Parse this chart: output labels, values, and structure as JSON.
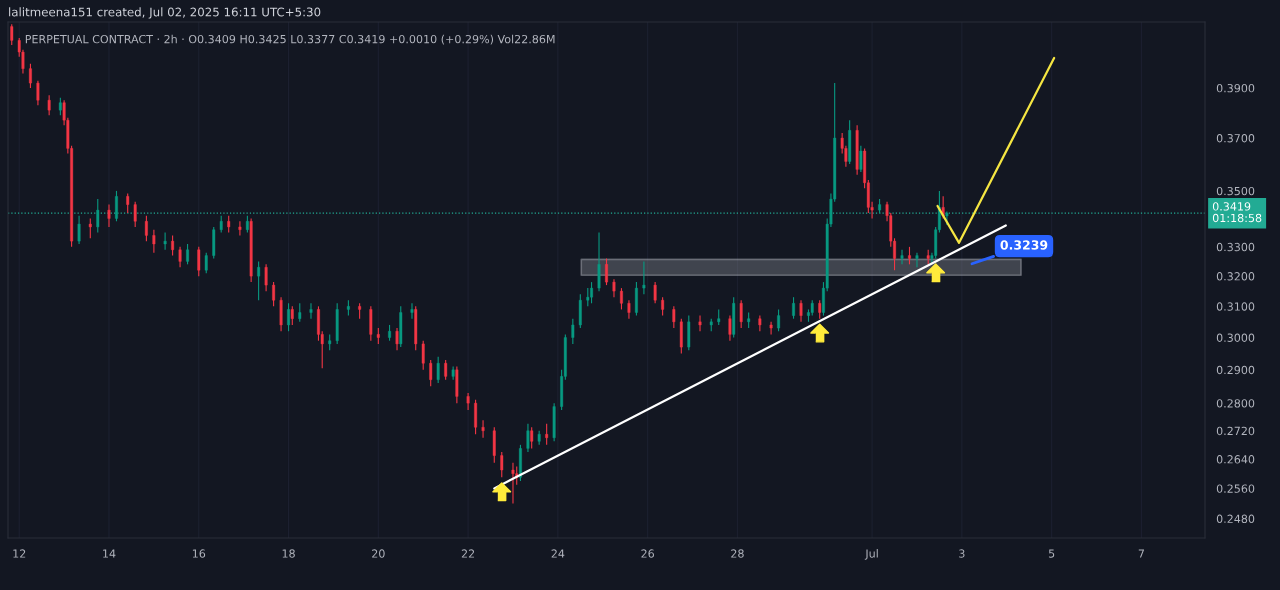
{
  "chart_data": {
    "type": "candlestick",
    "title": "lalitmeena151 created, Jul 02, 2025 16:11 UTC+5:30",
    "subtitle": "PERPETUAL CONTRACT · 2h · O0.3409 H0.3425 L0.3377 C0.3419 +0.0010 (+0.29%) Vol22.86M",
    "log": "y",
    "grid": "x",
    "xlim": [
      "2025-06-11T18:00",
      "2025-07-08T10:00"
    ],
    "xticks": [
      {
        "value": "2025-06-12",
        "label": "12"
      },
      {
        "value": "2025-06-14",
        "label": "14"
      },
      {
        "value": "2025-06-16",
        "label": "16"
      },
      {
        "value": "2025-06-18",
        "label": "18"
      },
      {
        "value": "2025-06-20",
        "label": "20"
      },
      {
        "value": "2025-06-22",
        "label": "22"
      },
      {
        "value": "2025-06-24",
        "label": "24"
      },
      {
        "value": "2025-06-26",
        "label": "26"
      },
      {
        "value": "2025-06-28",
        "label": "28"
      },
      {
        "value": "2025-07-01",
        "label": "Jul"
      },
      {
        "value": "2025-07-03",
        "label": "3"
      },
      {
        "value": "2025-07-05",
        "label": "5"
      },
      {
        "value": "2025-07-07",
        "label": "7"
      }
    ],
    "ylim": [
      0.243,
      0.418
    ],
    "yticks": [
      {
        "value": 0.248,
        "label": "0.2480"
      },
      {
        "value": 0.256,
        "label": "0.2560"
      },
      {
        "value": 0.264,
        "label": "0.2640"
      },
      {
        "value": 0.272,
        "label": "0.2720"
      },
      {
        "value": 0.28,
        "label": "0.2800"
      },
      {
        "value": 0.29,
        "label": "0.2900"
      },
      {
        "value": 0.3,
        "label": "0.3000"
      },
      {
        "value": 0.31,
        "label": "0.3100"
      },
      {
        "value": 0.32,
        "label": "0.3200"
      },
      {
        "value": 0.33,
        "label": "0.3300"
      },
      {
        "value": 0.35,
        "label": "0.3500"
      },
      {
        "value": 0.37,
        "label": "0.3700"
      },
      {
        "value": 0.39,
        "label": "0.3900"
      }
    ],
    "x": [
      "2025-06-11T20:00",
      "2025-06-12T00:00",
      "2025-06-12T02:00",
      "2025-06-12T06:00",
      "2025-06-12T10:00",
      "2025-06-12T16:00",
      "2025-06-12T22:00",
      "2025-06-13T00:00",
      "2025-06-13T02:00",
      "2025-06-13T04:00",
      "2025-06-13T08:00",
      "2025-06-13T14:00",
      "2025-06-13T18:00",
      "2025-06-14T00:00",
      "2025-06-14T04:00",
      "2025-06-14T10:00",
      "2025-06-14T14:00",
      "2025-06-14T20:00",
      "2025-06-15T00:00",
      "2025-06-15T06:00",
      "2025-06-15T10:00",
      "2025-06-15T14:00",
      "2025-06-15T18:00",
      "2025-06-16T00:00",
      "2025-06-16T04:00",
      "2025-06-16T08:00",
      "2025-06-16T12:00",
      "2025-06-16T16:00",
      "2025-06-16T22:00",
      "2025-06-17T02:00",
      "2025-06-17T04:00",
      "2025-06-17T08:00",
      "2025-06-17T12:00",
      "2025-06-17T16:00",
      "2025-06-17T20:00",
      "2025-06-18T00:00",
      "2025-06-18T02:00",
      "2025-06-18T06:00",
      "2025-06-18T12:00",
      "2025-06-18T16:00",
      "2025-06-18T18:00",
      "2025-06-18T22:00",
      "2025-06-19T02:00",
      "2025-06-19T08:00",
      "2025-06-19T14:00",
      "2025-06-19T20:00",
      "2025-06-20T00:00",
      "2025-06-20T06:00",
      "2025-06-20T10:00",
      "2025-06-20T12:00",
      "2025-06-20T18:00",
      "2025-06-20T20:00",
      "2025-06-21T00:00",
      "2025-06-21T04:00",
      "2025-06-21T08:00",
      "2025-06-21T12:00",
      "2025-06-21T16:00",
      "2025-06-21T18:00",
      "2025-06-22T00:00",
      "2025-06-22T04:00",
      "2025-06-22T08:00",
      "2025-06-22T14:00",
      "2025-06-22T18:00",
      "2025-06-23T00:00",
      "2025-06-23T02:00",
      "2025-06-23T04:00",
      "2025-06-23T08:00",
      "2025-06-23T10:00",
      "2025-06-23T14:00",
      "2025-06-23T18:00",
      "2025-06-23T22:00",
      "2025-06-24T02:00",
      "2025-06-24T04:00",
      "2025-06-24T08:00",
      "2025-06-24T12:00",
      "2025-06-24T16:00",
      "2025-06-24T18:00",
      "2025-06-24T22:00",
      "2025-06-25T02:00",
      "2025-06-25T06:00",
      "2025-06-25T10:00",
      "2025-06-25T14:00",
      "2025-06-25T18:00",
      "2025-06-25T22:00",
      "2025-06-26T04:00",
      "2025-06-26T08:00",
      "2025-06-26T14:00",
      "2025-06-26T18:00",
      "2025-06-26T22:00",
      "2025-06-27T04:00",
      "2025-06-27T10:00",
      "2025-06-27T14:00",
      "2025-06-27T20:00",
      "2025-06-27T22:00",
      "2025-06-28T02:00",
      "2025-06-28T06:00",
      "2025-06-28T12:00",
      "2025-06-28T18:00",
      "2025-06-28T22:00",
      "2025-06-29T06:00",
      "2025-06-29T10:00",
      "2025-06-29T14:00",
      "2025-06-29T16:00",
      "2025-06-29T20:00",
      "2025-06-29T22:00",
      "2025-06-30T00:00",
      "2025-06-30T02:00",
      "2025-06-30T04:00",
      "2025-06-30T08:00",
      "2025-06-30T10:00",
      "2025-06-30T12:00",
      "2025-06-30T16:00",
      "2025-06-30T18:00",
      "2025-06-30T20:00",
      "2025-06-30T22:00",
      "2025-07-01T00:00",
      "2025-07-01T04:00",
      "2025-07-01T08:00",
      "2025-07-01T10:00",
      "2025-07-01T12:00",
      "2025-07-01T16:00",
      "2025-07-01T20:00",
      "2025-07-02T00:00",
      "2025-07-02T06:00",
      "2025-07-02T08:00",
      "2025-07-02T10:00",
      "2025-07-02T12:00",
      "2025-07-02T14:00",
      "2025-07-02T16:00"
    ],
    "ohlc": [
      [
        0.416,
        0.417,
        0.408,
        0.41
      ],
      [
        0.41,
        0.411,
        0.403,
        0.405
      ],
      [
        0.405,
        0.406,
        0.396,
        0.398
      ],
      [
        0.398,
        0.4,
        0.39,
        0.392
      ],
      [
        0.392,
        0.393,
        0.383,
        0.385
      ],
      [
        0.385,
        0.387,
        0.379,
        0.381
      ],
      [
        0.381,
        0.386,
        0.379,
        0.384
      ],
      [
        0.384,
        0.385,
        0.375,
        0.377
      ],
      [
        0.377,
        0.378,
        0.364,
        0.366
      ],
      [
        0.366,
        0.367,
        0.33,
        0.332
      ],
      [
        0.332,
        0.341,
        0.331,
        0.338
      ],
      [
        0.338,
        0.34,
        0.333,
        0.337
      ],
      [
        0.337,
        0.347,
        0.335,
        0.343
      ],
      [
        0.343,
        0.345,
        0.337,
        0.34
      ],
      [
        0.34,
        0.35,
        0.339,
        0.348
      ],
      [
        0.348,
        0.349,
        0.342,
        0.345
      ],
      [
        0.345,
        0.346,
        0.337,
        0.339
      ],
      [
        0.339,
        0.341,
        0.332,
        0.334
      ],
      [
        0.334,
        0.336,
        0.328,
        0.331
      ],
      [
        0.331,
        0.335,
        0.329,
        0.332
      ],
      [
        0.332,
        0.334,
        0.327,
        0.329
      ],
      [
        0.329,
        0.33,
        0.323,
        0.325
      ],
      [
        0.325,
        0.331,
        0.324,
        0.329
      ],
      [
        0.329,
        0.33,
        0.32,
        0.322
      ],
      [
        0.322,
        0.328,
        0.321,
        0.327
      ],
      [
        0.327,
        0.337,
        0.326,
        0.336
      ],
      [
        0.336,
        0.341,
        0.335,
        0.339
      ],
      [
        0.339,
        0.341,
        0.335,
        0.337
      ],
      [
        0.337,
        0.339,
        0.334,
        0.336
      ],
      [
        0.336,
        0.341,
        0.335,
        0.339
      ],
      [
        0.339,
        0.34,
        0.318,
        0.32
      ],
      [
        0.32,
        0.325,
        0.312,
        0.323
      ],
      [
        0.323,
        0.324,
        0.315,
        0.317
      ],
      [
        0.317,
        0.318,
        0.31,
        0.312
      ],
      [
        0.312,
        0.313,
        0.302,
        0.304
      ],
      [
        0.304,
        0.311,
        0.302,
        0.309
      ],
      [
        0.309,
        0.31,
        0.304,
        0.306
      ],
      [
        0.306,
        0.311,
        0.305,
        0.308
      ],
      [
        0.308,
        0.311,
        0.306,
        0.309
      ],
      [
        0.309,
        0.31,
        0.299,
        0.301
      ],
      [
        0.301,
        0.302,
        0.2905,
        0.298
      ],
      [
        0.298,
        0.301,
        0.296,
        0.299
      ],
      [
        0.299,
        0.311,
        0.298,
        0.309
      ],
      [
        0.309,
        0.312,
        0.307,
        0.31
      ],
      [
        0.31,
        0.311,
        0.306,
        0.309
      ],
      [
        0.309,
        0.31,
        0.299,
        0.301
      ],
      [
        0.301,
        0.303,
        0.298,
        0.3
      ],
      [
        0.3,
        0.304,
        0.299,
        0.302
      ],
      [
        0.302,
        0.303,
        0.296,
        0.298
      ],
      [
        0.298,
        0.31,
        0.297,
        0.308
      ],
      [
        0.308,
        0.311,
        0.306,
        0.309
      ],
      [
        0.309,
        0.31,
        0.296,
        0.298
      ],
      [
        0.298,
        0.299,
        0.29,
        0.292
      ],
      [
        0.292,
        0.293,
        0.285,
        0.287
      ],
      [
        0.287,
        0.294,
        0.286,
        0.292
      ],
      [
        0.292,
        0.293,
        0.287,
        0.288
      ],
      [
        0.288,
        0.291,
        0.287,
        0.29
      ],
      [
        0.29,
        0.291,
        0.28,
        0.282
      ],
      [
        0.282,
        0.283,
        0.278,
        0.28
      ],
      [
        0.28,
        0.281,
        0.271,
        0.273
      ],
      [
        0.273,
        0.275,
        0.27,
        0.272
      ],
      [
        0.272,
        0.273,
        0.263,
        0.265
      ],
      [
        0.265,
        0.266,
        0.259,
        0.261
      ],
      [
        0.261,
        0.263,
        0.252,
        0.26
      ],
      [
        0.26,
        0.262,
        0.257,
        0.259
      ],
      [
        0.259,
        0.268,
        0.258,
        0.267
      ],
      [
        0.267,
        0.274,
        0.266,
        0.272
      ],
      [
        0.272,
        0.273,
        0.267,
        0.269
      ],
      [
        0.269,
        0.272,
        0.268,
        0.271
      ],
      [
        0.271,
        0.274,
        0.268,
        0.27
      ],
      [
        0.27,
        0.28,
        0.269,
        0.279
      ],
      [
        0.279,
        0.29,
        0.278,
        0.288
      ],
      [
        0.288,
        0.301,
        0.287,
        0.3
      ],
      [
        0.3,
        0.306,
        0.298,
        0.304
      ],
      [
        0.304,
        0.314,
        0.303,
        0.312
      ],
      [
        0.312,
        0.316,
        0.31,
        0.313
      ],
      [
        0.313,
        0.318,
        0.311,
        0.316
      ],
      [
        0.316,
        0.335,
        0.315,
        0.324
      ],
      [
        0.324,
        0.326,
        0.317,
        0.318
      ],
      [
        0.318,
        0.319,
        0.313,
        0.315
      ],
      [
        0.315,
        0.316,
        0.309,
        0.311
      ],
      [
        0.311,
        0.312,
        0.306,
        0.308
      ],
      [
        0.308,
        0.318,
        0.307,
        0.316
      ],
      [
        0.316,
        0.325,
        0.314,
        0.317
      ],
      [
        0.317,
        0.318,
        0.311,
        0.312
      ],
      [
        0.312,
        0.313,
        0.307,
        0.309
      ],
      [
        0.309,
        0.31,
        0.303,
        0.305
      ],
      [
        0.305,
        0.306,
        0.295,
        0.297
      ],
      [
        0.297,
        0.307,
        0.296,
        0.305
      ],
      [
        0.305,
        0.307,
        0.302,
        0.304
      ],
      [
        0.304,
        0.306,
        0.302,
        0.305
      ],
      [
        0.305,
        0.309,
        0.304,
        0.306
      ],
      [
        0.306,
        0.307,
        0.299,
        0.301
      ],
      [
        0.301,
        0.313,
        0.3,
        0.311
      ],
      [
        0.311,
        0.312,
        0.303,
        0.305
      ],
      [
        0.305,
        0.308,
        0.303,
        0.306
      ],
      [
        0.306,
        0.307,
        0.302,
        0.304
      ],
      [
        0.304,
        0.305,
        0.301,
        0.303
      ],
      [
        0.303,
        0.309,
        0.302,
        0.307
      ],
      [
        0.307,
        0.313,
        0.306,
        0.311
      ],
      [
        0.311,
        0.312,
        0.305,
        0.307
      ],
      [
        0.307,
        0.309,
        0.305,
        0.308
      ],
      [
        0.308,
        0.312,
        0.307,
        0.311
      ],
      [
        0.311,
        0.312,
        0.306,
        0.308
      ],
      [
        0.308,
        0.318,
        0.307,
        0.316
      ],
      [
        0.316,
        0.34,
        0.315,
        0.338
      ],
      [
        0.338,
        0.349,
        0.337,
        0.347
      ],
      [
        0.347,
        0.392,
        0.346,
        0.37
      ],
      [
        0.37,
        0.372,
        0.364,
        0.366
      ],
      [
        0.366,
        0.367,
        0.359,
        0.361
      ],
      [
        0.361,
        0.377,
        0.36,
        0.373
      ],
      [
        0.373,
        0.375,
        0.356,
        0.358
      ],
      [
        0.358,
        0.367,
        0.357,
        0.365
      ],
      [
        0.365,
        0.366,
        0.351,
        0.353
      ],
      [
        0.353,
        0.354,
        0.342,
        0.344
      ],
      [
        0.344,
        0.346,
        0.34,
        0.343
      ],
      [
        0.343,
        0.347,
        0.342,
        0.345
      ],
      [
        0.345,
        0.346,
        0.339,
        0.341
      ],
      [
        0.341,
        0.342,
        0.33,
        0.332
      ],
      [
        0.332,
        0.333,
        0.322,
        0.326
      ],
      [
        0.326,
        0.329,
        0.324,
        0.327
      ],
      [
        0.327,
        0.33,
        0.324,
        0.326
      ],
      [
        0.326,
        0.328,
        0.323,
        0.327
      ],
      [
        0.327,
        0.329,
        0.324,
        0.326
      ],
      [
        0.326,
        0.328,
        0.324,
        0.327
      ],
      [
        0.327,
        0.337,
        0.326,
        0.336
      ],
      [
        0.336,
        0.35,
        0.335,
        0.344
      ],
      [
        0.344,
        0.348,
        0.34,
        0.3409
      ],
      [
        0.3409,
        0.3425,
        0.3377,
        0.3419
      ]
    ],
    "series": [
      {
        "type": "area",
        "x": [
          "2025-06-24T12:30",
          "2025-07-04T07:40"
        ],
        "values": [
          null,
          null
        ],
        "lower": [
          0.3203,
          0.3203
        ],
        "upper": [
          0.3257,
          0.3257
        ],
        "color": "#9598a1"
      },
      {
        "type": "line",
        "x": [
          "2025-06-22T14:00",
          "2025-07-03T23:30"
        ],
        "values": [
          0.256,
          0.3375
        ],
        "color": "#ffffff"
      },
      {
        "type": "line",
        "x": [
          "2025-07-02T11:00",
          "2025-07-02T22:30",
          "2025-07-05T01:20"
        ],
        "values": [
          0.3445,
          0.3314,
          0.4025
        ],
        "color": "#f5e642"
      }
    ],
    "ref_lines": [
      {
        "axis": "y",
        "value": 0.3419,
        "label": "0.3419\n01:18:58",
        "color": "#22ab94",
        "line_style": "dotted"
      }
    ],
    "annotations": [
      {
        "text": "0.3239",
        "x": "2025-07-03T04:00",
        "y": 0.3239
      }
    ]
  }
}
